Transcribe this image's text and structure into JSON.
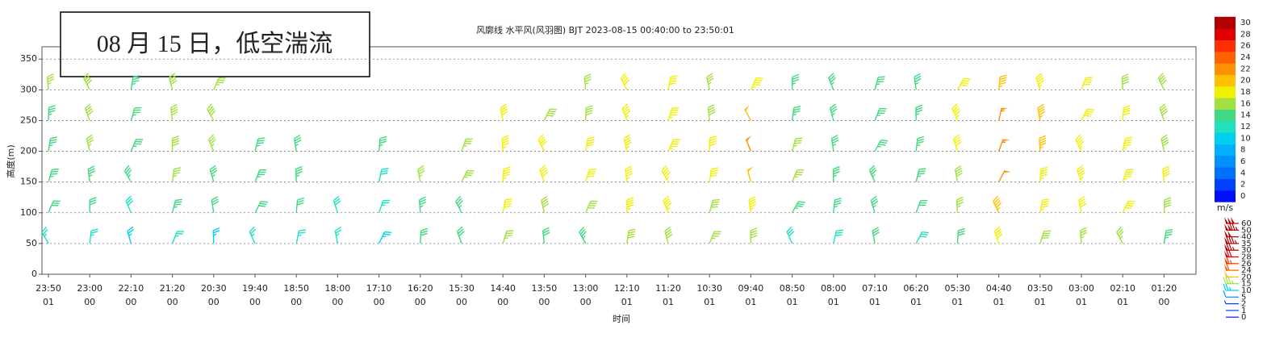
{
  "chart_data": {
    "type": "windbarb",
    "title": "风廓线 水平风(风羽图) BJT 2023-08-15 00:40:00 to 23:50:01",
    "annotation": "08 月 15 日，低空湍流",
    "y_label": "高度(m)",
    "x_label": "时间",
    "categories": [
      "23:50",
      "23:00",
      "22:10",
      "21:20",
      "20:30",
      "19:40",
      "18:50",
      "18:00",
      "17:10",
      "16:20",
      "15:30",
      "14:40",
      "13:50",
      "13:00",
      "12:10",
      "11:20",
      "10:30",
      "09:40",
      "08:50",
      "08:00",
      "07:10",
      "06:20",
      "05:30",
      "04:40",
      "03:50",
      "03:00",
      "02:10",
      "01:20"
    ],
    "category_days": [
      "01",
      "00",
      "00",
      "00",
      "00",
      "00",
      "00",
      "00",
      "00",
      "00",
      "00",
      "00",
      "00",
      "00",
      "01",
      "01",
      "01",
      "01",
      "01",
      "01",
      "01",
      "01",
      "01",
      "01",
      "01",
      "01",
      "01",
      "00"
    ],
    "heights": [
      50,
      100,
      150,
      200,
      250,
      300
    ],
    "values": [
      [
        11,
        13,
        14,
        14,
        14,
        15
      ],
      [
        11,
        13,
        14,
        15,
        16,
        16
      ],
      [
        10,
        12,
        14,
        14,
        14,
        14
      ],
      [
        11,
        14,
        15,
        16,
        16,
        16
      ],
      [
        10,
        13,
        14,
        15,
        16,
        15
      ],
      [
        11,
        13,
        14,
        14,
        null,
        null
      ],
      [
        11,
        13,
        14,
        14,
        null,
        null
      ],
      [
        11,
        12,
        null,
        null,
        null,
        null
      ],
      [
        10,
        11,
        12,
        14,
        null,
        null
      ],
      [
        13,
        14,
        15,
        null,
        null,
        null
      ],
      [
        13,
        14,
        15,
        15,
        null,
        null
      ],
      [
        15,
        17,
        18,
        18,
        17,
        null
      ],
      [
        13,
        16,
        17,
        17,
        16,
        null
      ],
      [
        14,
        16,
        17,
        17,
        16,
        15
      ],
      [
        16,
        18,
        18,
        18,
        18,
        17
      ],
      [
        16,
        18,
        18,
        18,
        18,
        17
      ],
      [
        15,
        16,
        17,
        17,
        16,
        15
      ],
      [
        16,
        18,
        20,
        21,
        20,
        18
      ],
      [
        12,
        14,
        15,
        15,
        14,
        14
      ],
      [
        12,
        14,
        14,
        14,
        14,
        14
      ],
      [
        13,
        14,
        14,
        14,
        14,
        14
      ],
      [
        12,
        13,
        14,
        14,
        14,
        14
      ],
      [
        13,
        15,
        16,
        17,
        18,
        17
      ],
      [
        17,
        19,
        21,
        22,
        22,
        19
      ],
      [
        16,
        18,
        18,
        19,
        19,
        18
      ],
      [
        15,
        17,
        18,
        18,
        17,
        17
      ],
      [
        15,
        17,
        18,
        18,
        17,
        16
      ],
      [
        14,
        16,
        17,
        16,
        16,
        16
      ]
    ],
    "ylim": [
      0,
      370
    ],
    "yticks": [
      0,
      50,
      100,
      150,
      200,
      250,
      300,
      350
    ],
    "grid": true,
    "colorbar": {
      "label": "m/s",
      "ticks": [
        0,
        2,
        4,
        6,
        8,
        10,
        12,
        14,
        16,
        18,
        20,
        22,
        24,
        26,
        28,
        30
      ],
      "colors": [
        "#0010ff",
        "#0040ff",
        "#0070ff",
        "#0090ff",
        "#00b0ff",
        "#00d0f0",
        "#20e0c0",
        "#40d880",
        "#a0e040",
        "#f0f000",
        "#ffc000",
        "#ff9000",
        "#ff6000",
        "#ff3000",
        "#e00000",
        "#b00000"
      ]
    },
    "barb_legend": [
      60,
      50,
      40,
      35,
      30,
      28,
      26,
      24,
      20,
      15,
      10,
      5,
      2,
      1,
      0
    ]
  }
}
